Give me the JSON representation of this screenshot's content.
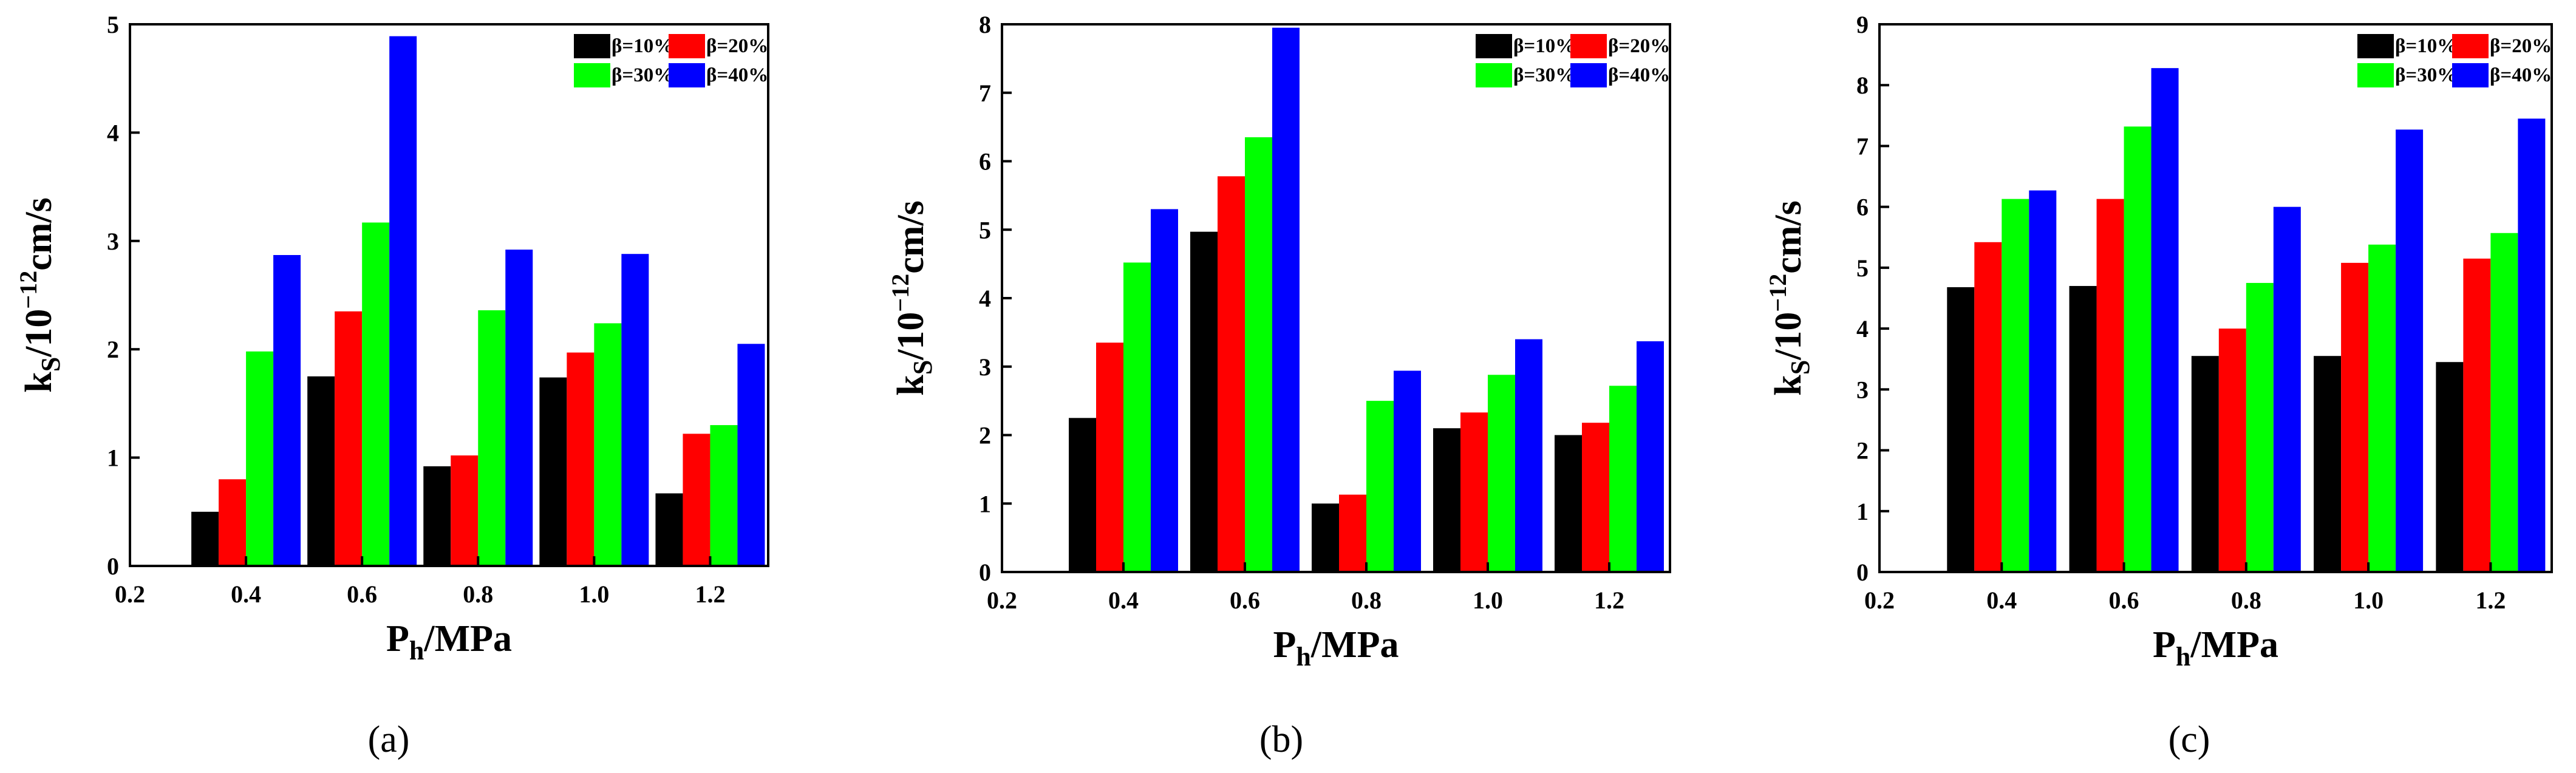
{
  "colors": {
    "beta10": "#000000",
    "beta20": "#ff0000",
    "beta30": "#00ff00",
    "beta40": "#0000ff"
  },
  "chart_data": [
    {
      "type": "bar",
      "panel_label": "(a)",
      "title": "",
      "xlabel": {
        "main": "P",
        "sub": "h",
        "rest": "/MPa"
      },
      "ylabel": {
        "main": "k",
        "sub": "S",
        "rest": "/10",
        "sup": "−12",
        "tail": "cm/s"
      },
      "x_ticks": [
        "0.2",
        "0.4",
        "0.6",
        "0.8",
        "1.0",
        "1.2"
      ],
      "xlim": [
        0.2,
        1.3
      ],
      "ylim": [
        0,
        5
      ],
      "y_ticks": [
        "0",
        "1",
        "2",
        "3",
        "4",
        "5"
      ],
      "categories": [
        0.4,
        0.6,
        0.8,
        1.0,
        1.2
      ],
      "series": [
        {
          "name": "β=10%",
          "color_key": "beta10",
          "values": [
            0.5,
            1.75,
            0.92,
            1.74,
            0.67
          ]
        },
        {
          "name": "β=20%",
          "color_key": "beta20",
          "values": [
            0.8,
            2.35,
            1.02,
            1.97,
            1.22
          ]
        },
        {
          "name": "β=30%",
          "color_key": "beta30",
          "values": [
            1.98,
            3.17,
            2.36,
            2.24,
            1.3
          ]
        },
        {
          "name": "β=40%",
          "color_key": "beta40",
          "values": [
            2.87,
            4.89,
            2.92,
            2.88,
            2.05
          ]
        }
      ],
      "legend_position": "top-right"
    },
    {
      "type": "bar",
      "panel_label": "(b)",
      "title": "",
      "xlabel": {
        "main": "P",
        "sub": "h",
        "rest": "/MPa"
      },
      "ylabel": {
        "main": "k",
        "sub": "S",
        "rest": "/10",
        "sup": "−12",
        "tail": "cm/s"
      },
      "x_ticks": [
        "0.2",
        "0.4",
        "0.6",
        "0.8",
        "1.0",
        "1.2"
      ],
      "xlim": [
        0.2,
        1.3
      ],
      "ylim": [
        0,
        8
      ],
      "y_ticks": [
        "0",
        "1",
        "2",
        "3",
        "4",
        "5",
        "6",
        "7",
        "8"
      ],
      "categories": [
        0.4,
        0.6,
        0.8,
        1.0,
        1.2
      ],
      "series": [
        {
          "name": "β=10%",
          "color_key": "beta10",
          "values": [
            2.25,
            4.97,
            1.0,
            2.1,
            2.0
          ]
        },
        {
          "name": "β=20%",
          "color_key": "beta20",
          "values": [
            3.35,
            5.78,
            1.13,
            2.33,
            2.18
          ]
        },
        {
          "name": "β=30%",
          "color_key": "beta30",
          "values": [
            4.52,
            6.35,
            2.5,
            2.88,
            2.72
          ]
        },
        {
          "name": "β=40%",
          "color_key": "beta40",
          "values": [
            5.3,
            7.95,
            2.94,
            3.4,
            3.37
          ]
        }
      ],
      "legend_position": "top-right"
    },
    {
      "type": "bar",
      "panel_label": "(c)",
      "title": "",
      "xlabel": {
        "main": "P",
        "sub": "h",
        "rest": "/MPa"
      },
      "ylabel": {
        "main": "k",
        "sub": "S",
        "rest": "/10",
        "sup": "−12",
        "tail": "cm/s"
      },
      "x_ticks": [
        "0.2",
        "0.4",
        "0.6",
        "0.8",
        "1.0",
        "1.2"
      ],
      "xlim": [
        0.2,
        1.3
      ],
      "ylim": [
        0,
        9
      ],
      "y_ticks": [
        "0",
        "1",
        "2",
        "3",
        "4",
        "5",
        "6",
        "7",
        "8",
        "9"
      ],
      "categories": [
        0.4,
        0.6,
        0.8,
        1.0,
        1.2
      ],
      "series": [
        {
          "name": "β=10%",
          "color_key": "beta10",
          "values": [
            4.68,
            4.7,
            3.55,
            3.55,
            3.45
          ]
        },
        {
          "name": "β=20%",
          "color_key": "beta20",
          "values": [
            5.42,
            6.13,
            4.0,
            5.08,
            5.15
          ]
        },
        {
          "name": "β=30%",
          "color_key": "beta30",
          "values": [
            6.13,
            7.32,
            4.75,
            5.38,
            5.57
          ]
        },
        {
          "name": "β=40%",
          "color_key": "beta40",
          "values": [
            6.27,
            8.28,
            6.0,
            7.27,
            7.45
          ]
        }
      ],
      "legend_position": "top-right"
    }
  ]
}
